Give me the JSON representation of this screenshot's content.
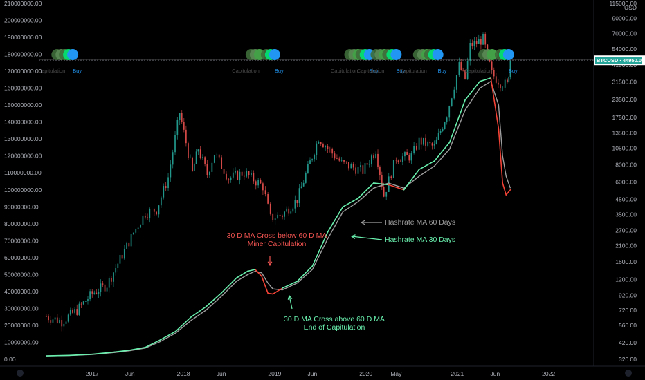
{
  "chart_data": {
    "type": "line",
    "symbol": "BTCUSD",
    "last_price": "44950.00",
    "currency": "USD",
    "x_ticks": [
      "2017",
      "Jun",
      "2018",
      "Jun",
      "2019",
      "Jun",
      "2020",
      "May",
      "2021",
      "Jun",
      "2022"
    ],
    "left_axis": {
      "ticks": [
        "210000000.00",
        "200000000.00",
        "190000000.00",
        "180000000.00",
        "170000000.00",
        "160000000.00",
        "150000000.00",
        "140000000.00",
        "130000000.00",
        "120000000.00",
        "110000000.00",
        "100000000.00",
        "90000000.00",
        "80000000.00",
        "70000000.00",
        "60000000.00",
        "50000000.00",
        "40000000.00",
        "30000000.00",
        "20000000.00",
        "10000000.00",
        "0.00"
      ],
      "ylim": [
        0,
        210000000
      ]
    },
    "right_axis": {
      "scale": "log",
      "ticks": [
        "115000.00",
        "90000.00",
        "70000.00",
        "54000.00",
        "41500.00",
        "31500.00",
        "23500.00",
        "17500.00",
        "13500.00",
        "10500.00",
        "8000.00",
        "6000.00",
        "4500.00",
        "3500.00",
        "2700.00",
        "2100.00",
        "1600.00",
        "1200.00",
        "920.00",
        "720.00",
        "560.00",
        "420.00",
        "320.00"
      ]
    },
    "series": [
      {
        "name": "Hashrate MA 30 Days",
        "color": "#69f0ae",
        "alt_color": "#f44336",
        "points": [
          [
            "2016-07-01",
            2000000
          ],
          [
            "2016-10-01",
            2300000
          ],
          [
            "2017-01-01",
            3000000
          ],
          [
            "2017-04-01",
            4300000
          ],
          [
            "2017-06-01",
            5400000
          ],
          [
            "2017-08-01",
            7000000
          ],
          [
            "2017-10-01",
            11500000
          ],
          [
            "2017-12-01",
            16500000
          ],
          [
            "2018-02-01",
            25000000
          ],
          [
            "2018-04-01",
            31000000
          ],
          [
            "2018-06-01",
            39000000
          ],
          [
            "2018-08-01",
            48000000
          ],
          [
            "2018-09-15",
            52000000
          ],
          [
            "2018-10-15",
            53000000
          ],
          [
            "2018-11-10",
            49000000
          ],
          [
            "2018-12-05",
            39000000
          ],
          [
            "2018-12-25",
            38500000
          ],
          [
            "2019-02-01",
            42000000
          ],
          [
            "2019-04-01",
            46000000
          ],
          [
            "2019-06-01",
            55000000
          ],
          [
            "2019-08-01",
            75000000
          ],
          [
            "2019-10-01",
            90000000
          ],
          [
            "2019-12-01",
            95000000
          ],
          [
            "2020-02-01",
            104000000
          ],
          [
            "2020-04-01",
            103000000
          ],
          [
            "2020-06-01",
            100000000
          ],
          [
            "2020-08-01",
            112000000
          ],
          [
            "2020-10-01",
            117000000
          ],
          [
            "2020-12-01",
            128000000
          ],
          [
            "2021-02-01",
            153000000
          ],
          [
            "2021-04-01",
            164000000
          ],
          [
            "2021-05-15",
            166000000
          ],
          [
            "2021-06-15",
            136000000
          ],
          [
            "2021-07-01",
            104000000
          ],
          [
            "2021-07-15",
            97000000
          ],
          [
            "2021-08-01",
            100000000
          ]
        ]
      },
      {
        "name": "Hashrate MA 60 Days",
        "color": "#9e9e9e",
        "points": [
          [
            "2016-07-01",
            2000000
          ],
          [
            "2016-10-01",
            2200000
          ],
          [
            "2017-01-01",
            2800000
          ],
          [
            "2017-04-01",
            4000000
          ],
          [
            "2017-06-01",
            5100000
          ],
          [
            "2017-08-01",
            6600000
          ],
          [
            "2017-10-01",
            10500000
          ],
          [
            "2017-12-01",
            15500000
          ],
          [
            "2018-02-01",
            23000000
          ],
          [
            "2018-04-01",
            29000000
          ],
          [
            "2018-06-01",
            37000000
          ],
          [
            "2018-08-01",
            46000000
          ],
          [
            "2018-09-15",
            50000000
          ],
          [
            "2018-10-15",
            52000000
          ],
          [
            "2018-11-10",
            51000000
          ],
          [
            "2018-12-05",
            45000000
          ],
          [
            "2018-12-25",
            41500000
          ],
          [
            "2019-02-01",
            41000000
          ],
          [
            "2019-04-01",
            45000000
          ],
          [
            "2019-06-01",
            53000000
          ],
          [
            "2019-08-01",
            71000000
          ],
          [
            "2019-10-01",
            87000000
          ],
          [
            "2019-12-01",
            93000000
          ],
          [
            "2020-02-01",
            101000000
          ],
          [
            "2020-04-01",
            104000000
          ],
          [
            "2020-06-01",
            101000000
          ],
          [
            "2020-08-01",
            108000000
          ],
          [
            "2020-10-01",
            114000000
          ],
          [
            "2020-12-01",
            124000000
          ],
          [
            "2021-02-01",
            147000000
          ],
          [
            "2021-04-01",
            160000000
          ],
          [
            "2021-05-15",
            164000000
          ],
          [
            "2021-06-15",
            150000000
          ],
          [
            "2021-07-01",
            120000000
          ],
          [
            "2021-07-15",
            108000000
          ],
          [
            "2021-08-01",
            101000000
          ]
        ]
      },
      {
        "name": "BTCUSD",
        "color": "#26a69a",
        "scale": "right",
        "points": [
          [
            "2016-07-01",
            650
          ],
          [
            "2016-09-01",
            600
          ],
          [
            "2016-11-01",
            720
          ],
          [
            "2017-01-01",
            950
          ],
          [
            "2017-03-01",
            1100
          ],
          [
            "2017-05-01",
            1800
          ],
          [
            "2017-06-15",
            2600
          ],
          [
            "2017-08-01",
            3600
          ],
          [
            "2017-09-15",
            3800
          ],
          [
            "2017-11-01",
            6500
          ],
          [
            "2017-12-17",
            19000
          ],
          [
            "2018-02-06",
            7000
          ],
          [
            "2018-03-01",
            10500
          ],
          [
            "2018-04-06",
            6800
          ],
          [
            "2018-05-05",
            9700
          ],
          [
            "2018-07-01",
            6400
          ],
          [
            "2018-09-01",
            7000
          ],
          [
            "2018-11-15",
            5600
          ],
          [
            "2018-12-15",
            3300
          ],
          [
            "2019-02-01",
            3500
          ],
          [
            "2019-04-01",
            4500
          ],
          [
            "2019-06-26",
            12500
          ],
          [
            "2019-08-01",
            10500
          ],
          [
            "2019-09-26",
            8200
          ],
          [
            "2019-12-20",
            7200
          ],
          [
            "2020-02-10",
            10300
          ],
          [
            "2020-03-13",
            4800
          ],
          [
            "2020-05-01",
            9000
          ],
          [
            "2020-07-01",
            9200
          ],
          [
            "2020-08-01",
            11800
          ],
          [
            "2020-10-01",
            10700
          ],
          [
            "2020-11-20",
            18500
          ],
          [
            "2021-01-08",
            41000
          ],
          [
            "2021-02-01",
            33000
          ],
          [
            "2021-02-21",
            57000
          ],
          [
            "2021-04-14",
            64000
          ],
          [
            "2021-05-19",
            36000
          ],
          [
            "2021-06-22",
            31000
          ],
          [
            "2021-07-20",
            30000
          ],
          [
            "2021-08-01",
            44950
          ]
        ]
      }
    ],
    "signals": [
      {
        "date": "2016-09-15",
        "kind": "capitulation",
        "label": "Capitulation"
      },
      {
        "date": "2016-10-15",
        "kind": "buy",
        "label": "Buy"
      },
      {
        "date": "2018-11-01",
        "kind": "capitulation",
        "label": "Capitulation"
      },
      {
        "date": "2019-01-01",
        "kind": "buy",
        "label": "Buy"
      },
      {
        "date": "2019-12-01",
        "kind": "capitulation",
        "label": "Capitulation"
      },
      {
        "date": "2020-01-15",
        "kind": "buy",
        "label": "Buy"
      },
      {
        "date": "2020-03-15",
        "kind": "capitulation",
        "label": "Capitulation"
      },
      {
        "date": "2020-05-01",
        "kind": "buy",
        "label": "Buy"
      },
      {
        "date": "2020-09-01",
        "kind": "capitulation",
        "label": "Capitulation"
      },
      {
        "date": "2020-10-15",
        "kind": "buy",
        "label": "Buy"
      },
      {
        "date": "2021-05-20",
        "kind": "capitulation",
        "label": "Capitulation"
      },
      {
        "date": "2021-07-25",
        "kind": "buy",
        "label": "Buy"
      }
    ],
    "annotations": [
      {
        "text": [
          "30 D MA Cross below 60 D MA",
          "Miner Capitulation"
        ],
        "color": "#ef5350"
      },
      {
        "text": [
          "30 D MA Cross above 60 D MA",
          "End of Capitulation"
        ],
        "color": "#69f0ae"
      },
      {
        "text": [
          "Hashrate MA 60 Days"
        ],
        "color": "#9e9e9e"
      },
      {
        "text": [
          "Hashrate MA 30 Days"
        ],
        "color": "#69f0ae"
      }
    ],
    "colors": {
      "background": "#000000",
      "buy": "#2196f3",
      "capitulation": "#43a047",
      "up_candle": "#26a69a",
      "down_candle": "#ef5350"
    }
  }
}
